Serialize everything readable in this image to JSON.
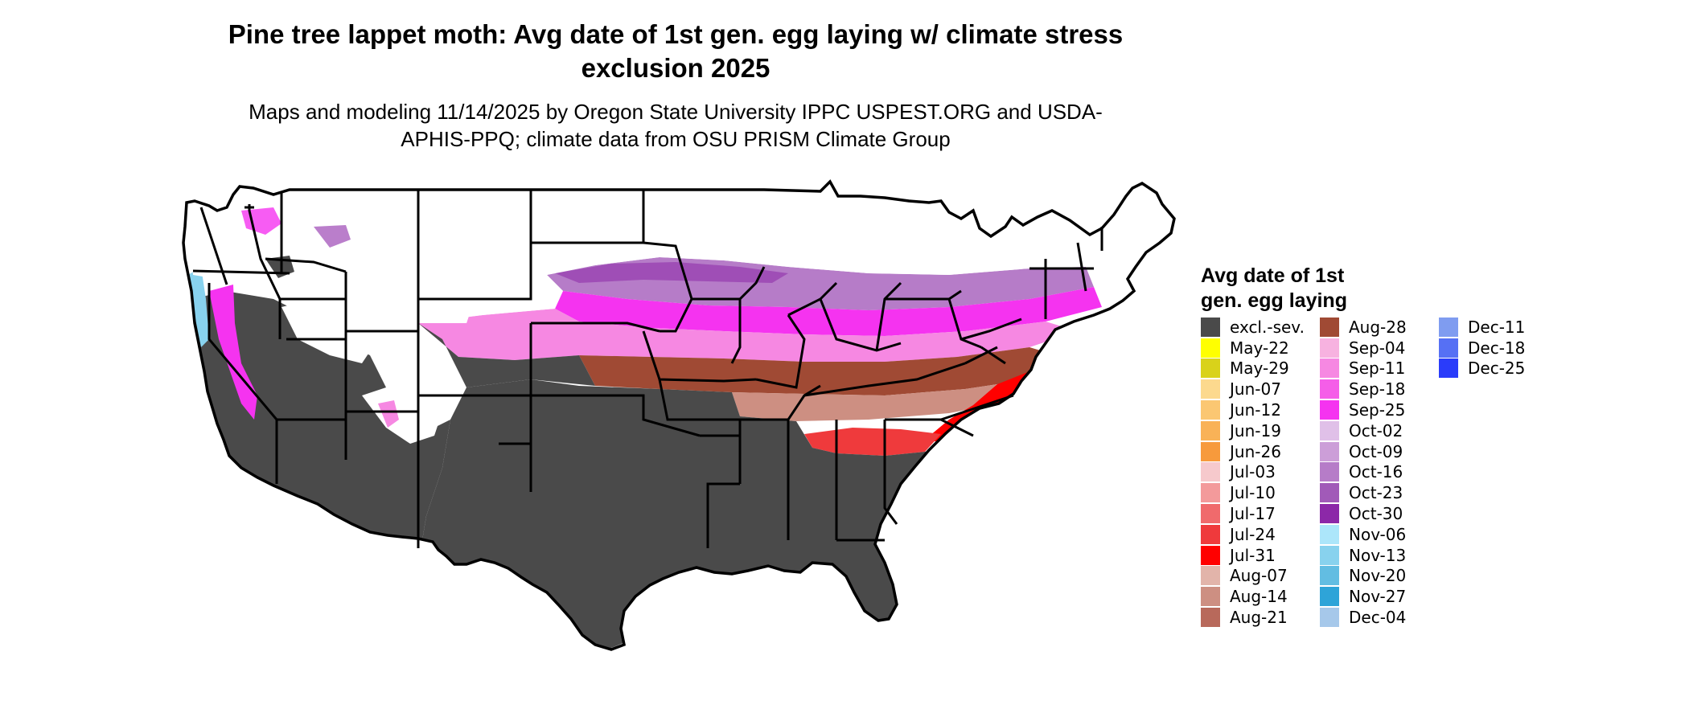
{
  "title": "Pine tree lappet moth: Avg date of 1st gen. egg laying w/ climate stress exclusion 2025",
  "subtitle": "Maps and modeling 11/14/2025 by Oregon State University IPPC USPEST.ORG and USDA-APHIS-PPQ; climate data from OSU PRISM Climate Group",
  "legend": {
    "title": "Avg date of 1st gen. egg laying",
    "columns": [
      [
        {
          "label": "excl.-sev.",
          "color": "#4a4a4a"
        },
        {
          "label": "May-22",
          "color": "#ffff00"
        },
        {
          "label": "May-29",
          "color": "#d9d21a"
        },
        {
          "label": "Jun-07",
          "color": "#fcd98e"
        },
        {
          "label": "Jun-12",
          "color": "#fbc772"
        },
        {
          "label": "Jun-19",
          "color": "#f9b257"
        },
        {
          "label": "Jun-26",
          "color": "#f79a3c"
        },
        {
          "label": "Jul-03",
          "color": "#f6c9cc"
        },
        {
          "label": "Jul-10",
          "color": "#f39a9b"
        },
        {
          "label": "Jul-17",
          "color": "#f06a6c"
        },
        {
          "label": "Jul-24",
          "color": "#ef3a3c"
        },
        {
          "label": "Jul-31",
          "color": "#ff0000"
        },
        {
          "label": "Aug-07",
          "color": "#e2b4aa"
        },
        {
          "label": "Aug-14",
          "color": "#cd8f82"
        },
        {
          "label": "Aug-21",
          "color": "#b8695b"
        }
      ],
      [
        {
          "label": "Aug-28",
          "color": "#a04a34"
        },
        {
          "label": "Sep-04",
          "color": "#f7b2e0"
        },
        {
          "label": "Sep-11",
          "color": "#f688e2"
        },
        {
          "label": "Sep-18",
          "color": "#f55ee8"
        },
        {
          "label": "Sep-25",
          "color": "#f533f0"
        },
        {
          "label": "Oct-02",
          "color": "#e0c0e8"
        },
        {
          "label": "Oct-09",
          "color": "#cc9ed8"
        },
        {
          "label": "Oct-16",
          "color": "#b67cc8"
        },
        {
          "label": "Oct-23",
          "color": "#a15ab8"
        },
        {
          "label": "Oct-30",
          "color": "#8c28a8"
        },
        {
          "label": "Nov-06",
          "color": "#ace6fa"
        },
        {
          "label": "Nov-13",
          "color": "#88d2ee"
        },
        {
          "label": "Nov-20",
          "color": "#62bde2"
        },
        {
          "label": "Nov-27",
          "color": "#2ea4d8"
        },
        {
          "label": "Dec-04",
          "color": "#a6c8ea"
        }
      ],
      [
        {
          "label": "Dec-11",
          "color": "#7f9cf0"
        },
        {
          "label": "Dec-18",
          "color": "#5670f4"
        },
        {
          "label": "Dec-25",
          "color": "#2a3cfa"
        }
      ]
    ]
  }
}
